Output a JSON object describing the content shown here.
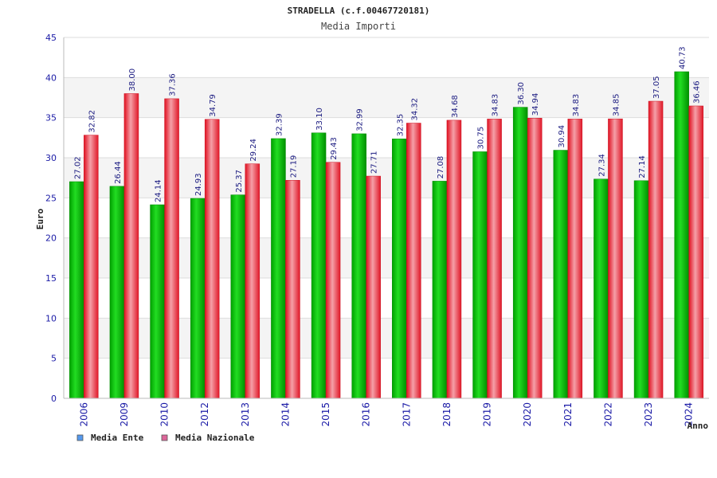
{
  "chart_data": {
    "type": "bar",
    "title": "STRADELLA (c.f.00467720181)",
    "subtitle": "Media Importi",
    "xlabel": "Anno",
    "ylabel": "Euro",
    "ylim": [
      0,
      45
    ],
    "yticks": [
      0,
      5,
      10,
      15,
      20,
      25,
      30,
      35,
      40,
      45
    ],
    "grid": true,
    "legend_position": "bottom-left",
    "categories": [
      "2006",
      "2009",
      "2010",
      "2012",
      "2013",
      "2014",
      "2015",
      "2016",
      "2017",
      "2018",
      "2019",
      "2020",
      "2021",
      "2022",
      "2023",
      "2024"
    ],
    "series": [
      {
        "name": "Media Ente",
        "color": "#00bb00",
        "legend_color": "#5599ee",
        "values": [
          27.02,
          26.44,
          24.14,
          24.93,
          25.37,
          32.39,
          33.1,
          32.99,
          32.35,
          27.08,
          30.75,
          36.3,
          30.94,
          27.34,
          27.14,
          40.73
        ],
        "labels": [
          "27.02",
          "26.44",
          "24.14",
          "24.93",
          "25.37",
          "32.39",
          "33.10",
          "32.99",
          "32.35",
          "27.08",
          "30.75",
          "36.30",
          "30.94",
          "27.34",
          "27.14",
          "40.73"
        ]
      },
      {
        "name": "Media Nazionale",
        "color": "#e8303a",
        "legend_color": "#dd6699",
        "values": [
          32.82,
          38.0,
          37.36,
          34.79,
          29.24,
          27.19,
          29.43,
          27.71,
          34.32,
          34.68,
          34.83,
          34.94,
          34.83,
          34.85,
          37.05,
          36.46
        ],
        "labels": [
          "32.82",
          "38.00",
          "37.36",
          "34.79",
          "29.24",
          "27.19",
          "29.43",
          "27.71",
          "34.32",
          "34.68",
          "34.83",
          "34.94",
          "34.83",
          "34.85",
          "37.05",
          "36.46"
        ]
      }
    ]
  }
}
